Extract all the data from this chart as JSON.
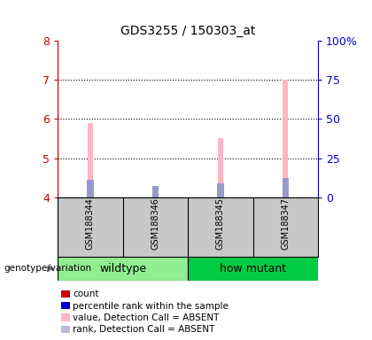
{
  "title": "GDS3255 / 150303_at",
  "samples": [
    "GSM188344",
    "GSM188346",
    "GSM188345",
    "GSM188347"
  ],
  "ylim_left": [
    4,
    8
  ],
  "ylim_right": [
    0,
    100
  ],
  "yticks_left": [
    4,
    5,
    6,
    7,
    8
  ],
  "yticks_right": [
    0,
    25,
    50,
    75,
    100
  ],
  "pink_bar_tops": [
    5.9,
    4.25,
    5.5,
    7.0
  ],
  "blue_bar_tops": [
    4.45,
    4.28,
    4.35,
    4.5
  ],
  "bar_bottom": 4.0,
  "pink_color": "#FFB6C1",
  "blue_color": "#9999CC",
  "left_tick_color": "#CC0000",
  "right_tick_color": "#0000CC",
  "label_area_color": "#C8C8C8",
  "wildtype_color": "#90EE90",
  "howmutant_color": "#00CC44",
  "bar_width": 0.08,
  "group_label": "genotype/variation",
  "legend_items": [
    {
      "color": "#CC0000",
      "label": "count"
    },
    {
      "color": "#0000CC",
      "label": "percentile rank within the sample"
    },
    {
      "color": "#FFB6C1",
      "label": "value, Detection Call = ABSENT"
    },
    {
      "color": "#BBBBDD",
      "label": "rank, Detection Call = ABSENT"
    }
  ]
}
